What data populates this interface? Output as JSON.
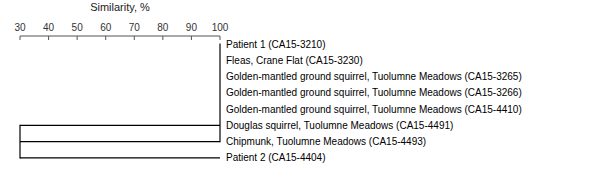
{
  "chart_data": {
    "type": "dendrogram",
    "x_label": "Similarity, %",
    "categories": [
      "Patient 1 (CA15-3210)",
      "Fleas, Crane Flat (CA15-3230)",
      "Golden-mantled ground squirrel, Tuolumne Meadows (CA15-3265)",
      "Golden-mantled ground squirrel, Tuolumne Meadows (CA15-3266)",
      "Golden-mantled ground squirrel, Tuolumne Meadows (CA15-4410)",
      "Douglas squirrel, Tuolumne Meadows (CA15-4491)",
      "Chipmunk, Tuolumne Meadows (CA15-4493)",
      "Patient 2 (CA15-4404)"
    ],
    "merges": [
      {
        "value": 100,
        "members": [
          0,
          1,
          2,
          3,
          4,
          5,
          6
        ]
      },
      {
        "value": 30,
        "members": [
          5,
          6,
          7
        ]
      }
    ],
    "xlim": [
      30,
      100
    ],
    "xticks": [
      30,
      40,
      50,
      60,
      70,
      80,
      90,
      100
    ],
    "color": "#000000"
  }
}
